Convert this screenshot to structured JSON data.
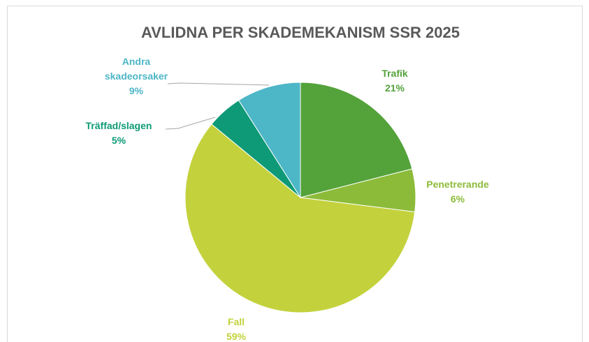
{
  "chart_data": {
    "type": "pie",
    "title": "AVLIDNA PER SKADEMEKANISM SSR 2025",
    "categories": [
      "Trafik",
      "Penetrerande",
      "Fall",
      "Träffad/slagen",
      "Andra skadeorsaker"
    ],
    "values": [
      21,
      6,
      59,
      5,
      9
    ],
    "value_labels": [
      "21%",
      "6%",
      "59%",
      "5%",
      "9%"
    ],
    "colors": [
      "#54a23a",
      "#8cbb3a",
      "#c3d23c",
      "#0e9a76",
      "#4db6c7"
    ]
  }
}
